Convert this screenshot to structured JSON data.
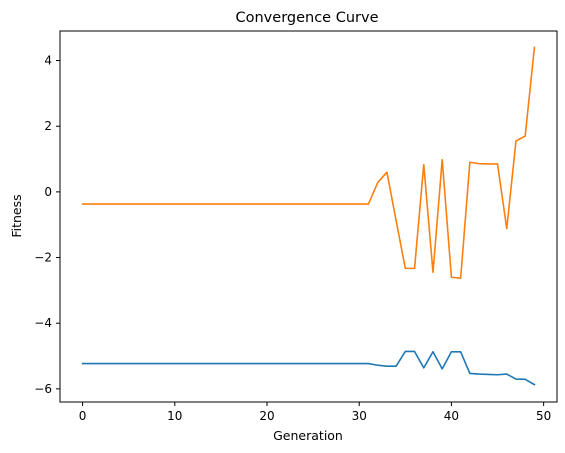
{
  "chart_data": {
    "type": "line",
    "title": "Convergence Curve",
    "xlabel": "Generation",
    "ylabel": "Fitness",
    "xlim": [
      -2.45,
      51.45
    ],
    "ylim": [
      -6.4,
      4.9
    ],
    "xticks": [
      0,
      10,
      20,
      30,
      40,
      50
    ],
    "yticks": [
      -6,
      -4,
      -2,
      0,
      2,
      4
    ],
    "grid": false,
    "x": [
      0,
      1,
      2,
      3,
      4,
      5,
      6,
      7,
      8,
      9,
      10,
      11,
      12,
      13,
      14,
      15,
      16,
      17,
      18,
      19,
      20,
      21,
      22,
      23,
      24,
      25,
      26,
      27,
      28,
      29,
      30,
      31,
      32,
      33,
      34,
      35,
      36,
      37,
      38,
      39,
      40,
      41,
      42,
      43,
      44,
      45,
      46,
      47,
      48,
      49
    ],
    "series": [
      {
        "color": "#1f77b4",
        "values": [
          -5.23,
          -5.23,
          -5.23,
          -5.23,
          -5.23,
          -5.23,
          -5.23,
          -5.23,
          -5.23,
          -5.23,
          -5.23,
          -5.23,
          -5.23,
          -5.23,
          -5.23,
          -5.23,
          -5.23,
          -5.23,
          -5.23,
          -5.23,
          -5.23,
          -5.23,
          -5.23,
          -5.23,
          -5.23,
          -5.23,
          -5.23,
          -5.23,
          -5.23,
          -5.23,
          -5.23,
          -5.23,
          -5.28,
          -5.31,
          -5.31,
          -4.86,
          -4.86,
          -5.36,
          -4.87,
          -5.39,
          -4.87,
          -4.87,
          -5.53,
          -5.55,
          -5.56,
          -5.57,
          -5.55,
          -5.7,
          -5.71,
          -5.87
        ]
      },
      {
        "color": "#ff7f0e",
        "values": [
          -0.37,
          -0.37,
          -0.37,
          -0.37,
          -0.37,
          -0.37,
          -0.37,
          -0.37,
          -0.37,
          -0.37,
          -0.37,
          -0.37,
          -0.37,
          -0.37,
          -0.37,
          -0.37,
          -0.37,
          -0.37,
          -0.37,
          -0.37,
          -0.37,
          -0.37,
          -0.37,
          -0.37,
          -0.37,
          -0.37,
          -0.37,
          -0.37,
          -0.37,
          -0.37,
          -0.37,
          -0.37,
          0.28,
          0.6,
          -0.87,
          -2.33,
          -2.33,
          0.83,
          -2.45,
          0.98,
          -2.6,
          -2.63,
          0.9,
          0.86,
          0.85,
          0.85,
          -1.12,
          1.55,
          1.7,
          4.4
        ]
      }
    ]
  }
}
